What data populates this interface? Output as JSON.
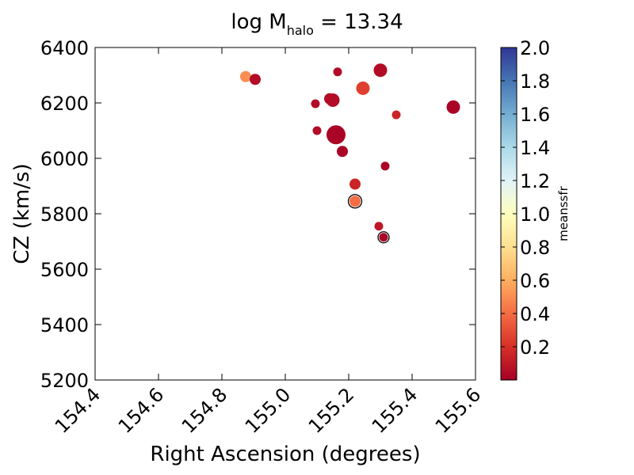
{
  "chart_data": {
    "type": "scatter",
    "title": {
      "prefix": "log M",
      "subscript": "halo",
      "suffix": " = 13.34"
    },
    "xlabel": "Right Ascension (degrees)",
    "ylabel": "CZ (km/s)",
    "xlim": [
      154.4,
      155.6
    ],
    "ylim": [
      5200,
      6400
    ],
    "xticks": [
      "154.4",
      "154.6",
      "154.8",
      "155.0",
      "155.2",
      "155.4",
      "155.6"
    ],
    "yticks": [
      "5200",
      "5400",
      "5600",
      "5800",
      "6000",
      "6200",
      "6400"
    ],
    "colorbar": {
      "label": "meanssfr",
      "range": [
        0.0,
        2.0
      ],
      "ticks": [
        "0.2",
        "0.4",
        "0.6",
        "0.8",
        "1.0",
        "1.2",
        "1.4",
        "1.6",
        "1.8",
        "2.0"
      ],
      "colormap": "RdYlBu"
    },
    "grid": false,
    "points": [
      {
        "x": 154.875,
        "y": 6295,
        "c": 0.5,
        "size": "medium",
        "ring": false
      },
      {
        "x": 154.905,
        "y": 6285,
        "c": 0.05,
        "size": "medium",
        "ring": false
      },
      {
        "x": 155.165,
        "y": 6312,
        "c": 0.05,
        "size": "small",
        "ring": false
      },
      {
        "x": 155.3,
        "y": 6318,
        "c": 0.05,
        "size": "large",
        "ring": false
      },
      {
        "x": 155.245,
        "y": 6253,
        "c": 0.25,
        "size": "large",
        "ring": false
      },
      {
        "x": 155.14,
        "y": 6215,
        "c": 0.05,
        "size": "medium",
        "ring": false
      },
      {
        "x": 155.15,
        "y": 6210,
        "c": 0.05,
        "size": "large",
        "ring": false
      },
      {
        "x": 155.095,
        "y": 6197,
        "c": 0.05,
        "size": "small",
        "ring": false
      },
      {
        "x": 155.35,
        "y": 6157,
        "c": 0.15,
        "size": "small",
        "ring": false
      },
      {
        "x": 155.53,
        "y": 6185,
        "c": 0.02,
        "size": "large",
        "ring": false
      },
      {
        "x": 155.1,
        "y": 6100,
        "c": 0.05,
        "size": "small",
        "ring": false
      },
      {
        "x": 155.16,
        "y": 6085,
        "c": 0.02,
        "size": "xlarge",
        "ring": false
      },
      {
        "x": 155.18,
        "y": 6025,
        "c": 0.02,
        "size": "medium",
        "ring": false
      },
      {
        "x": 155.315,
        "y": 5972,
        "c": 0.02,
        "size": "small",
        "ring": false
      },
      {
        "x": 155.22,
        "y": 5907,
        "c": 0.15,
        "size": "medium",
        "ring": false
      },
      {
        "x": 155.22,
        "y": 5845,
        "c": 0.4,
        "size": "medium",
        "ring": true
      },
      {
        "x": 155.295,
        "y": 5755,
        "c": 0.1,
        "size": "small",
        "ring": false
      },
      {
        "x": 155.31,
        "y": 5715,
        "c": 0.02,
        "size": "small",
        "ring": true
      }
    ]
  }
}
